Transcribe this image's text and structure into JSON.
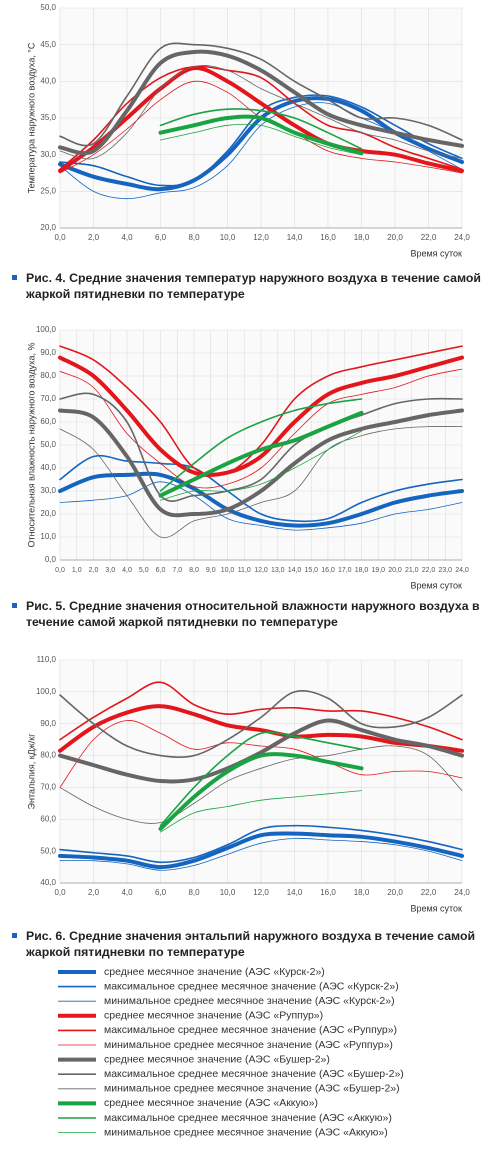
{
  "chart_data": [
    {
      "type": "line",
      "y_label": "Температура наружного воздуха, °С",
      "x_label": "Время суток",
      "caption": "Рис. 4. Средние значения температур наружного воздуха в течение самой жаркой пятидневки по температуре",
      "x": [
        0,
        2,
        4,
        6,
        8,
        10,
        12,
        14,
        16,
        18,
        20,
        22,
        24
      ],
      "xlim": [
        0,
        24
      ],
      "xticks": [
        {
          "value": 0,
          "label": "0,0"
        },
        {
          "value": 2,
          "label": "2,0"
        },
        {
          "value": 4,
          "label": "4,0"
        },
        {
          "value": 6,
          "label": "6,0"
        },
        {
          "value": 8,
          "label": "8,0"
        },
        {
          "value": 10,
          "label": "10,0"
        },
        {
          "value": 12,
          "label": "12,0"
        },
        {
          "value": 14,
          "label": "14,0"
        },
        {
          "value": 16,
          "label": "16,0"
        },
        {
          "value": 18,
          "label": "18,0"
        },
        {
          "value": 20,
          "label": "20,0"
        },
        {
          "value": 22,
          "label": "22,0"
        },
        {
          "value": 24,
          "label": "24,0"
        }
      ],
      "ylim": [
        20,
        50
      ],
      "yticks": [
        {
          "value": 20,
          "label": "20,0"
        },
        {
          "value": 25,
          "label": "25,0"
        },
        {
          "value": 30,
          "label": "30,0"
        },
        {
          "value": 35,
          "label": "35,0"
        },
        {
          "value": 40,
          "label": "40,0"
        },
        {
          "value": 45,
          "label": "45,0"
        },
        {
          "value": 50,
          "label": "50,0"
        }
      ],
      "grid": true,
      "series": [
        {
          "color": "#1565c0",
          "line_width": 4,
          "values": [
            28.7,
            27,
            26,
            25.3,
            26.5,
            30,
            35,
            37.3,
            37.6,
            36,
            33,
            30.8,
            29
          ]
        },
        {
          "color": "#1565c0",
          "line_width": 1.6,
          "values": [
            29,
            28.5,
            27,
            25.8,
            26.5,
            30.5,
            36,
            37.8,
            38,
            36.5,
            34,
            31.5,
            29.5
          ]
        },
        {
          "color": "#1565c0",
          "line_width": 0.8,
          "values": [
            28.5,
            25,
            24,
            24.8,
            25.5,
            28.5,
            34,
            36.5,
            37,
            35,
            33,
            30.5,
            28
          ]
        },
        {
          "color": "#e3161b",
          "line_width": 4,
          "values": [
            27.8,
            31,
            35,
            39,
            41.8,
            40,
            37,
            34,
            31.5,
            30.5,
            30,
            28.8,
            27.8
          ]
        },
        {
          "color": "#e3161b",
          "line_width": 1.6,
          "values": [
            28,
            32,
            37,
            40.5,
            42,
            41.5,
            40.5,
            37,
            34,
            33,
            31,
            29.5,
            28
          ]
        },
        {
          "color": "#e3161b",
          "line_width": 0.8,
          "values": [
            27.5,
            30,
            33.5,
            37.5,
            40,
            38.5,
            35,
            33,
            30.5,
            29.5,
            29,
            28.3,
            27.5
          ]
        },
        {
          "color": "#666666",
          "line_width": 4,
          "values": [
            31,
            30.5,
            36,
            42.5,
            44,
            43.5,
            41.5,
            38.5,
            35.5,
            34,
            33,
            32,
            31.2
          ]
        },
        {
          "color": "#666666",
          "line_width": 1.6,
          "values": [
            32.5,
            31.5,
            38,
            44.5,
            45,
            44.5,
            43,
            40,
            37.5,
            35,
            35,
            34,
            32
          ]
        },
        {
          "color": "#666666",
          "line_width": 0.8,
          "values": [
            30.5,
            29.5,
            33,
            39,
            42,
            41.5,
            39,
            37,
            35,
            33,
            32,
            30.5,
            29.5
          ]
        },
        {
          "color": "#1aa342",
          "line_width": 4,
          "values": [
            null,
            null,
            null,
            33,
            34,
            35,
            35,
            33,
            31.5,
            30.2,
            null,
            null,
            null
          ]
        },
        {
          "color": "#1aa342",
          "line_width": 1.6,
          "values": [
            null,
            null,
            null,
            34,
            35.5,
            36.2,
            36,
            35,
            33,
            30.8,
            null,
            null,
            null
          ]
        },
        {
          "color": "#1aa342",
          "line_width": 0.8,
          "values": [
            null,
            null,
            null,
            32,
            33,
            34,
            34,
            32.5,
            31,
            30,
            null,
            null,
            null
          ]
        }
      ]
    },
    {
      "type": "line",
      "y_label": "Относительная влажность наружного воздуха, %",
      "x_label": "Время суток",
      "caption": "Рис. 5. Средние значения относительной влажности наружного воздуха в течение самой жаркой пятидневки по температуре",
      "x": [
        0,
        2,
        4,
        6,
        8,
        10,
        12,
        14,
        16,
        18,
        20,
        22,
        24
      ],
      "xlim": [
        0,
        24
      ],
      "xticks": [
        {
          "value": 0,
          "label": "0,0"
        },
        {
          "value": 1,
          "label": "1,0"
        },
        {
          "value": 2,
          "label": "2,0"
        },
        {
          "value": 3,
          "label": "3,0"
        },
        {
          "value": 4,
          "label": "4,0"
        },
        {
          "value": 5,
          "label": "5,0"
        },
        {
          "value": 6,
          "label": "6,0"
        },
        {
          "value": 7,
          "label": "7,0"
        },
        {
          "value": 8,
          "label": "8,0"
        },
        {
          "value": 9,
          "label": "9,0"
        },
        {
          "value": 10,
          "label": "10,0"
        },
        {
          "value": 11,
          "label": "11,0"
        },
        {
          "value": 12,
          "label": "12,0"
        },
        {
          "value": 13,
          "label": "13,0"
        },
        {
          "value": 14,
          "label": "14,0"
        },
        {
          "value": 15,
          "label": "15,0"
        },
        {
          "value": 16,
          "label": "16,0"
        },
        {
          "value": 17,
          "label": "17,0"
        },
        {
          "value": 18,
          "label": "18,0"
        },
        {
          "value": 19,
          "label": "19,0"
        },
        {
          "value": 20,
          "label": "20,0"
        },
        {
          "value": 21,
          "label": "21,0"
        },
        {
          "value": 22,
          "label": "22,0"
        },
        {
          "value": 23,
          "label": "23,0"
        },
        {
          "value": 24,
          "label": "24,0"
        }
      ],
      "ylim": [
        0,
        100
      ],
      "yticks": [
        {
          "value": 0,
          "label": "0,0"
        },
        {
          "value": 10,
          "label": "10,0"
        },
        {
          "value": 20,
          "label": "20,0"
        },
        {
          "value": 30,
          "label": "30,0"
        },
        {
          "value": 40,
          "label": "40,0"
        },
        {
          "value": 50,
          "label": "50,0"
        },
        {
          "value": 60,
          "label": "60,0"
        },
        {
          "value": 70,
          "label": "70,0"
        },
        {
          "value": 80,
          "label": "80,0"
        },
        {
          "value": 90,
          "label": "90,0"
        },
        {
          "value": 100,
          "label": "100,0"
        }
      ],
      "grid": true,
      "series": [
        {
          "color": "#1565c0",
          "line_width": 4,
          "values": [
            30,
            36,
            37,
            37,
            31,
            22,
            17,
            15,
            16,
            20,
            25,
            28,
            30
          ]
        },
        {
          "color": "#1565c0",
          "line_width": 1.6,
          "values": [
            35,
            45,
            43,
            42,
            40,
            30,
            20,
            17,
            18,
            25,
            30,
            33,
            35
          ]
        },
        {
          "color": "#1565c0",
          "line_width": 0.8,
          "values": [
            25,
            26,
            28,
            34,
            28,
            18,
            15,
            13,
            14,
            16,
            20,
            22,
            25
          ]
        },
        {
          "color": "#e3161b",
          "line_width": 4,
          "values": [
            88,
            80,
            65,
            48,
            38,
            38,
            45,
            60,
            72,
            77,
            80,
            84,
            88
          ]
        },
        {
          "color": "#e3161b",
          "line_width": 1.6,
          "values": [
            93,
            87,
            75,
            60,
            40,
            38,
            50,
            70,
            80,
            84,
            87,
            90,
            93
          ]
        },
        {
          "color": "#e3161b",
          "line_width": 0.8,
          "values": [
            82,
            75,
            55,
            42,
            32,
            33,
            40,
            55,
            68,
            72,
            75,
            80,
            83
          ]
        },
        {
          "color": "#666666",
          "line_width": 4,
          "values": [
            65,
            62,
            45,
            22,
            20,
            22,
            30,
            42,
            52,
            57,
            60,
            63,
            65
          ]
        },
        {
          "color": "#666666",
          "line_width": 1.6,
          "values": [
            70,
            72,
            60,
            28,
            28,
            30,
            35,
            50,
            58,
            63,
            68,
            70,
            70
          ]
        },
        {
          "color": "#666666",
          "line_width": 0.8,
          "values": [
            57,
            48,
            28,
            10,
            17,
            20,
            25,
            30,
            48,
            54,
            57,
            58,
            58
          ]
        },
        {
          "color": "#1aa342",
          "line_width": 4,
          "values": [
            null,
            null,
            null,
            28,
            35,
            42,
            48,
            52,
            58,
            64,
            null,
            null,
            null
          ]
        },
        {
          "color": "#1aa342",
          "line_width": 1.6,
          "values": [
            null,
            null,
            null,
            30,
            42,
            53,
            60,
            65,
            68,
            70,
            null,
            null,
            null
          ]
        },
        {
          "color": "#1aa342",
          "line_width": 0.8,
          "values": [
            null,
            null,
            null,
            26,
            30,
            30,
            33,
            40,
            48,
            56,
            null,
            null,
            null
          ]
        }
      ]
    },
    {
      "type": "line",
      "y_label": "Энтальпия, кДж/кг",
      "x_label": "Время суток",
      "caption": "Рис. 6. Средние значения энтальпий наружного воздуха в течение самой жаркой пятидневки по температуре",
      "x": [
        0,
        2,
        4,
        6,
        8,
        10,
        12,
        14,
        16,
        18,
        20,
        22,
        24
      ],
      "xlim": [
        0,
        24
      ],
      "xticks": [
        {
          "value": 0,
          "label": "0,0"
        },
        {
          "value": 2,
          "label": "2,0"
        },
        {
          "value": 4,
          "label": "4,0"
        },
        {
          "value": 6,
          "label": "6,0"
        },
        {
          "value": 8,
          "label": "8,0"
        },
        {
          "value": 10,
          "label": "10,0"
        },
        {
          "value": 12,
          "label": "12,0"
        },
        {
          "value": 14,
          "label": "14,0"
        },
        {
          "value": 16,
          "label": "16,0"
        },
        {
          "value": 18,
          "label": "18,0"
        },
        {
          "value": 20,
          "label": "20,0"
        },
        {
          "value": 22,
          "label": "22,0"
        },
        {
          "value": 24,
          "label": "24,0"
        }
      ],
      "ylim": [
        40,
        110
      ],
      "yticks": [
        {
          "value": 40,
          "label": "40,0"
        },
        {
          "value": 50,
          "label": "50,0"
        },
        {
          "value": 60,
          "label": "60,0"
        },
        {
          "value": 70,
          "label": "70,0"
        },
        {
          "value": 80,
          "label": "80,0"
        },
        {
          "value": 90,
          "label": "90,0"
        },
        {
          "value": 100,
          "label": "100,0"
        },
        {
          "value": 110,
          "label": "110,0"
        }
      ],
      "grid": true,
      "series": [
        {
          "name": "среднее месячное значение (АЭС «Курск-2»)",
          "color": "#1565c0",
          "line_width": 4,
          "values": [
            48.5,
            48,
            47,
            45,
            47,
            51,
            55,
            55.5,
            55,
            54.5,
            53,
            51,
            48.5
          ]
        },
        {
          "name": "максимальное среднее месячное значение (АЭС «Курск-2»)",
          "color": "#1565c0",
          "line_width": 1.6,
          "values": [
            50.5,
            49.5,
            48.5,
            46.5,
            48,
            52,
            57,
            58,
            57.5,
            56.5,
            55,
            53,
            50.5
          ]
        },
        {
          "name": "минимальное среднее месячное значение (АЭС «Курск-2»)",
          "color": "#1565c0",
          "line_width": 0.8,
          "values": [
            47,
            47,
            46,
            44,
            45.5,
            49,
            52.5,
            54,
            53.5,
            53,
            52,
            50,
            47
          ]
        },
        {
          "name": "среднее месячное значение (АЭС «Руппур»)",
          "color": "#e3161b",
          "line_width": 4,
          "values": [
            81.5,
            89,
            93.5,
            95.5,
            93,
            89.5,
            88,
            86,
            86.5,
            86,
            84,
            83,
            81.5
          ]
        },
        {
          "name": "максимальное среднее месячное значение (АЭС «Руппур»)",
          "color": "#e3161b",
          "line_width": 1.6,
          "values": [
            85,
            92,
            98,
            103,
            96,
            93,
            94.5,
            95,
            94,
            94,
            92,
            89,
            85
          ]
        },
        {
          "name": "минимальное среднее месячное значение (АЭС «Руппур»)",
          "color": "#e3161b",
          "line_width": 0.8,
          "values": [
            70,
            85,
            91,
            87,
            82,
            84,
            83,
            82,
            78,
            74,
            75,
            75,
            73
          ]
        },
        {
          "name": "среднее месячное значение (АЭС «Бушер-2»)",
          "color": "#666666",
          "line_width": 4,
          "values": [
            80,
            77,
            74,
            72,
            72.5,
            76,
            81,
            87,
            91,
            88,
            85,
            83,
            80
          ]
        },
        {
          "name": "максимальное среднее месячное значение (АЭС «Бушер-2»)",
          "color": "#666666",
          "line_width": 1.6,
          "values": [
            99,
            90,
            83,
            80,
            80,
            85,
            92,
            100,
            98,
            90,
            89,
            92,
            99
          ]
        },
        {
          "name": "минимальное среднее месячное значение (АЭС «Бушер-2»)",
          "color": "#666666",
          "line_width": 0.8,
          "values": [
            70,
            64,
            60,
            59,
            65,
            72,
            76,
            79,
            80,
            82,
            83,
            80,
            69
          ]
        },
        {
          "name": "среднее месячное значение (АЭС «Аккую»)",
          "color": "#1aa342",
          "line_width": 4,
          "values": [
            null,
            null,
            null,
            57,
            67,
            75,
            80,
            80,
            78,
            76,
            null,
            null,
            null
          ]
        },
        {
          "name": "максимальное среднее месячное значение (АЭС «Аккую»)",
          "color": "#1aa342",
          "line_width": 1.6,
          "values": [
            null,
            null,
            null,
            58,
            70,
            80,
            87,
            86,
            84,
            82,
            null,
            null,
            null
          ]
        },
        {
          "name": "минимальное среднее месячное значение (АЭС «Аккую»)",
          "color": "#1aa342",
          "line_width": 0.8,
          "values": [
            null,
            null,
            null,
            56,
            62,
            64,
            66,
            67,
            68,
            69,
            null,
            null,
            null
          ]
        }
      ]
    }
  ]
}
